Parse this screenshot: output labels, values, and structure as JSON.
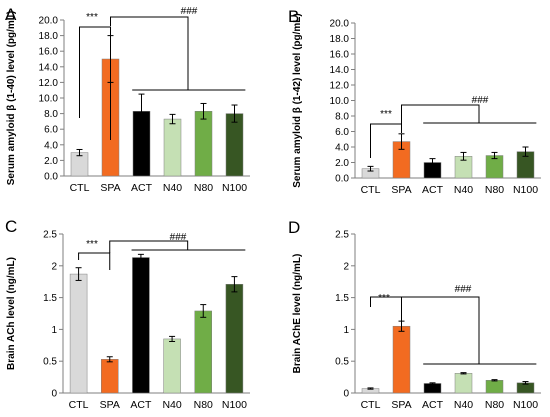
{
  "colors": {
    "CTL": "#d9d9d9",
    "SPA": "#f26b21",
    "ACT": "#000000",
    "N40": "#c5e0b4",
    "N80": "#70ad47",
    "N100": "#375623"
  },
  "chart_data": [
    {
      "panel": "A",
      "type": "bar",
      "ylabel": "Serum amyloid β (1-40)  level (pg/mL)",
      "categories": [
        "CTL",
        "SPA",
        "ACT",
        "N40",
        "N80",
        "N100"
      ],
      "values": [
        3.0,
        15.0,
        8.3,
        7.3,
        8.3,
        8.0
      ],
      "errors": [
        0.4,
        3.0,
        2.2,
        0.6,
        1.0,
        1.1
      ],
      "ylim": [
        0,
        20
      ],
      "yticks": [
        "0.0",
        "2.0",
        "4.0",
        "6.0",
        "8.0",
        "10.0",
        "12.0",
        "14.0",
        "16.0",
        "18.0",
        "20.0"
      ],
      "sig_ctl": "***",
      "sig_group": "###"
    },
    {
      "panel": "B",
      "type": "bar",
      "ylabel": "Serum amyloid β (1-42) level (pg/mL)",
      "categories": [
        "CTL",
        "SPA",
        "ACT",
        "N40",
        "N80",
        "N100"
      ],
      "values": [
        1.2,
        4.7,
        2.0,
        2.8,
        2.9,
        3.4
      ],
      "errors": [
        0.3,
        1.0,
        0.5,
        0.5,
        0.4,
        0.6
      ],
      "ylim": [
        0,
        20
      ],
      "yticks": [
        "0.0",
        "2.0",
        "4.0",
        "6.0",
        "8.0",
        "10.0",
        "12.0",
        "14.0",
        "16.0",
        "18.0",
        "20.0"
      ],
      "sig_ctl": "***",
      "sig_group": "###"
    },
    {
      "panel": "C",
      "type": "bar",
      "ylabel": "Brain ACh level (ng/mL)",
      "categories": [
        "CTL",
        "SPA",
        "ACT",
        "N40",
        "N80",
        "N100"
      ],
      "values": [
        1.87,
        0.53,
        2.13,
        0.85,
        1.29,
        1.71
      ],
      "errors": [
        0.1,
        0.04,
        0.05,
        0.04,
        0.1,
        0.12
      ],
      "ylim": [
        0,
        2.5
      ],
      "yticks": [
        "0",
        "0.5",
        "1",
        "1.5",
        "2",
        "2.5"
      ],
      "sig_ctl": "***",
      "sig_group": "###"
    },
    {
      "panel": "D",
      "type": "bar",
      "ylabel": "Brain AChE  level (ng/mL)",
      "categories": [
        "CTL",
        "SPA",
        "ACT",
        "N40",
        "N80",
        "N100"
      ],
      "values": [
        0.07,
        1.05,
        0.15,
        0.31,
        0.2,
        0.16
      ],
      "errors": [
        0.01,
        0.08,
        0.01,
        0.01,
        0.01,
        0.02
      ],
      "ylim": [
        0,
        2.5
      ],
      "yticks": [
        "0",
        "0.5",
        "1",
        "1.5",
        "2",
        "2.5"
      ],
      "sig_ctl": "***",
      "sig_group": "###"
    }
  ]
}
